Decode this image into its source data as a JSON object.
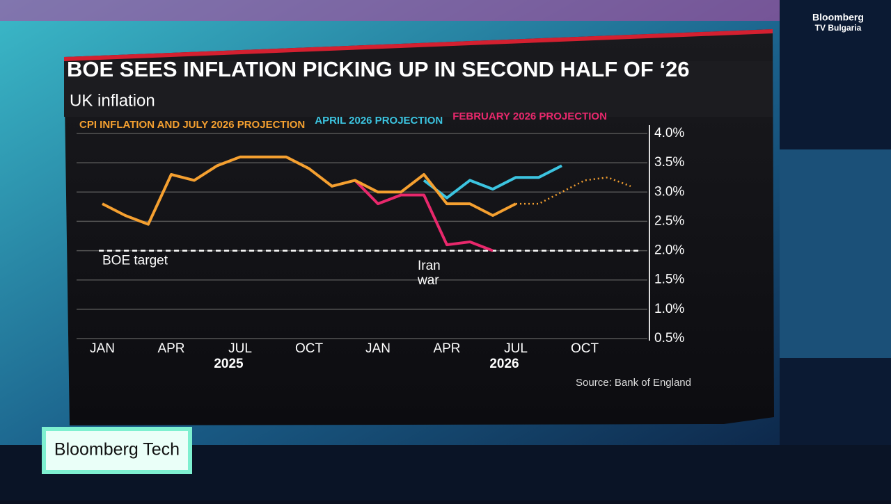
{
  "chart_data": {
    "type": "line",
    "title": "BOE SEES INFLATION PICKING UP IN SECOND HALF OF ‘26",
    "subtitle": "UK inflation",
    "source": "Source: Bank of England",
    "categories": [
      "JAN",
      null,
      null,
      "APR",
      null,
      null,
      "JUL",
      null,
      null,
      "OCT",
      null,
      null,
      "JAN",
      null,
      null,
      "APR",
      null,
      null,
      "JUL",
      null,
      null,
      "OCT",
      null,
      null
    ],
    "years": [
      "2025",
      "2026"
    ],
    "series": [
      {
        "name": "CPI INFLATION AND JULY 2026 PROJECTION",
        "color": "#f5a030",
        "values": [
          2.8,
          2.6,
          2.45,
          3.3,
          3.2,
          3.45,
          3.6,
          3.6,
          3.6,
          3.4,
          3.1,
          3.2,
          3.0,
          3.0,
          3.3,
          2.8,
          2.8,
          2.6,
          2.8,
          null,
          null,
          null,
          null,
          null
        ],
        "projection": [
          null,
          null,
          null,
          null,
          null,
          null,
          null,
          null,
          null,
          null,
          null,
          null,
          null,
          null,
          null,
          null,
          null,
          null,
          2.8,
          2.8,
          3.0,
          3.2,
          3.25,
          3.1
        ]
      },
      {
        "name": "APRIL 2026 PROJECTION",
        "color": "#3cc4e0",
        "values": [
          null,
          null,
          null,
          null,
          null,
          null,
          null,
          null,
          null,
          null,
          null,
          null,
          null,
          null,
          3.2,
          2.9,
          3.2,
          3.05,
          3.25,
          3.25,
          3.45,
          null,
          null,
          null
        ]
      },
      {
        "name": "FEBRUARY 2026 PROJECTION",
        "color": "#e8286c",
        "values": [
          null,
          null,
          null,
          null,
          null,
          null,
          null,
          null,
          null,
          null,
          null,
          3.2,
          2.8,
          2.95,
          2.95,
          2.1,
          2.15,
          2.0,
          null,
          null,
          null,
          null,
          null,
          null
        ]
      }
    ],
    "target": {
      "value": 2.0,
      "label": "BOE target"
    },
    "annotation": [
      "Iran",
      "war"
    ],
    "ylim": [
      0.5,
      4.0
    ],
    "yticks": [
      {
        "value": 0.5,
        "label": "0.5%"
      },
      {
        "value": 1.0,
        "label": "1.0%"
      },
      {
        "value": 1.5,
        "label": "1.5%"
      },
      {
        "value": 2.0,
        "label": "2.0%"
      },
      {
        "value": 2.5,
        "label": "2.5%"
      },
      {
        "value": 3.0,
        "label": "3.0%"
      },
      {
        "value": 3.5,
        "label": "3.5%"
      },
      {
        "value": 4.0,
        "label": "4.0%"
      }
    ],
    "grid": true
  },
  "overlay": {
    "channel": [
      "Bloomberg",
      "TV Bulgaria"
    ],
    "show": "Bloomberg Tech"
  }
}
